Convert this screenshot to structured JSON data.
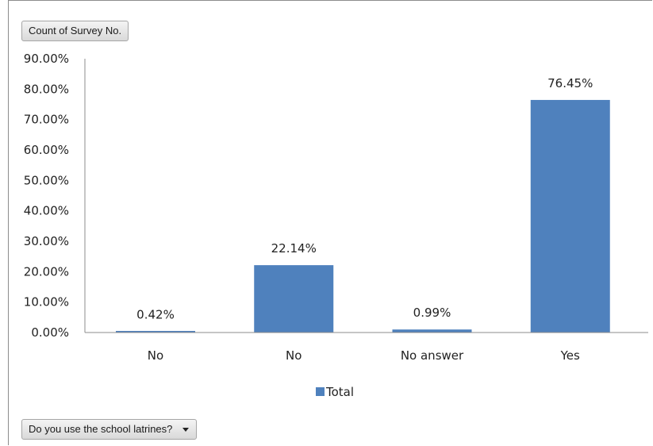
{
  "buttons": {
    "value_field": "Count of Survey No.",
    "axis_field": "Do you use the school latrines?"
  },
  "chart_data": {
    "type": "bar",
    "categories": [
      "No",
      "No",
      "No answer",
      "Yes"
    ],
    "series": [
      {
        "name": "Total",
        "values": [
          0.42,
          22.14,
          0.99,
          76.45
        ],
        "labels": [
          "0.42%",
          "22.14%",
          "0.99%",
          "76.45%"
        ],
        "color": "#4f81bd"
      }
    ],
    "ylim": [
      0,
      90
    ],
    "yticks": [
      "0.00%",
      "10.00%",
      "20.00%",
      "30.00%",
      "40.00%",
      "50.00%",
      "60.00%",
      "70.00%",
      "80.00%",
      "90.00%"
    ],
    "grid": false,
    "legend": "bottom"
  },
  "icons": {
    "dropdown": "chevron-down-icon"
  }
}
